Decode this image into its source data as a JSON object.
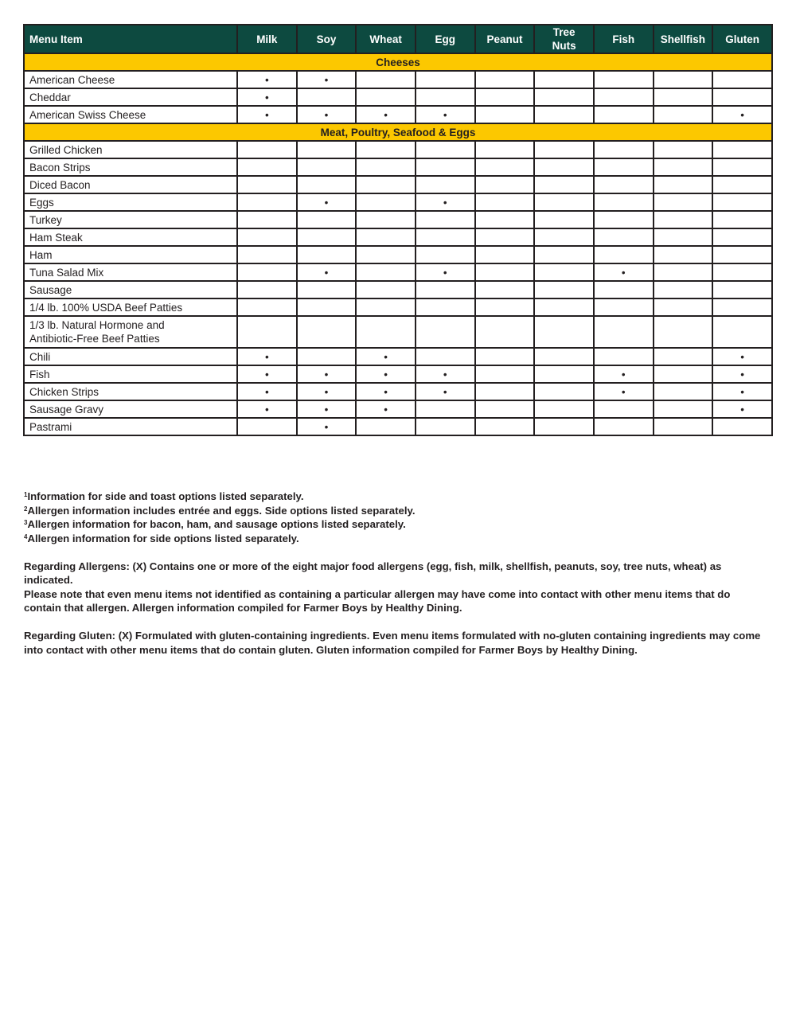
{
  "colors": {
    "header_bg": "#0d4a40",
    "section_bg": "#fcc800"
  },
  "columns": [
    "Menu Item",
    "Milk",
    "Soy",
    "Wheat",
    "Egg",
    "Peanut",
    "Tree Nuts",
    "Fish",
    "Shellfish",
    "Gluten"
  ],
  "marker": "•",
  "sections": [
    {
      "title": "Cheeses",
      "rows": [
        {
          "name": "American Cheese",
          "allergens": [
            "Milk",
            "Soy"
          ]
        },
        {
          "name": "Cheddar",
          "allergens": [
            "Milk"
          ]
        },
        {
          "name": "American Swiss Cheese",
          "allergens": [
            "Milk",
            "Soy",
            "Wheat",
            "Egg",
            "Gluten"
          ]
        }
      ]
    },
    {
      "title": "Meat, Poultry, Seafood & Eggs",
      "rows": [
        {
          "name": "Grilled Chicken",
          "allergens": []
        },
        {
          "name": "Bacon Strips",
          "allergens": []
        },
        {
          "name": "Diced Bacon",
          "allergens": []
        },
        {
          "name": "Eggs",
          "allergens": [
            "Soy",
            "Egg"
          ]
        },
        {
          "name": "Turkey",
          "allergens": []
        },
        {
          "name": "Ham Steak",
          "allergens": []
        },
        {
          "name": "Ham",
          "allergens": []
        },
        {
          "name": "Tuna Salad Mix",
          "allergens": [
            "Soy",
            "Egg",
            "Fish"
          ]
        },
        {
          "name": "Sausage",
          "allergens": []
        },
        {
          "name": "1/4 lb. 100% USDA Beef Patties",
          "allergens": []
        },
        {
          "name": "1/3 lb. Natural Hormone and\nAntibiotic-Free Beef Patties",
          "allergens": []
        },
        {
          "name": "Chili",
          "allergens": [
            "Milk",
            "Wheat",
            "Gluten"
          ]
        },
        {
          "name": "Fish",
          "allergens": [
            "Milk",
            "Soy",
            "Wheat",
            "Egg",
            "Fish",
            "Gluten"
          ]
        },
        {
          "name": "Chicken Strips",
          "allergens": [
            "Milk",
            "Soy",
            "Wheat",
            "Egg",
            "Fish",
            "Gluten"
          ]
        },
        {
          "name": "Sausage Gravy",
          "allergens": [
            "Milk",
            "Soy",
            "Wheat",
            "Gluten"
          ]
        },
        {
          "name": "Pastrami",
          "allergens": [
            "Soy"
          ]
        }
      ]
    }
  ],
  "footnotes": [
    {
      "mark": "1",
      "text": "Information for side and toast options listed separately."
    },
    {
      "mark": "2",
      "text": "Allergen information includes entrée and eggs. Side options listed separately."
    },
    {
      "mark": "3",
      "text": "Allergen information for bacon, ham, and sausage options listed separately."
    },
    {
      "mark": "4",
      "text": "Allergen information for side options listed separately."
    }
  ],
  "allergen_note": [
    "Regarding Allergens: (X) Contains one or more of the eight major food allergens (egg, fish, milk, shellfish, peanuts, soy, tree nuts, wheat) as indicated.",
    "Please note that even menu items not identified as containing a particular allergen may have come into contact with other menu items that do contain that allergen. Allergen information compiled for Farmer Boys by Healthy Dining."
  ],
  "gluten_note": "Regarding Gluten: (X) Formulated with gluten-containing ingredients. Even menu items formulated with no-gluten containing ingredients may come into contact with other menu items that do contain gluten. Gluten information compiled for Farmer Boys by Healthy Dining."
}
